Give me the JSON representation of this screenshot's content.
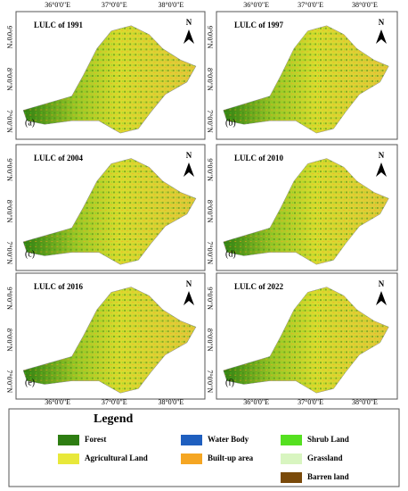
{
  "panels": [
    {
      "title": "LULC of 1991",
      "letter": "(a)"
    },
    {
      "title": "LULC of 1997",
      "letter": "(b)"
    },
    {
      "title": "LULC of 2004",
      "letter": "(c)"
    },
    {
      "title": "LULC of 2010",
      "letter": "(d)"
    },
    {
      "title": "LULC of 2016",
      "letter": "(e)"
    },
    {
      "title": "LULC of 2022",
      "letter": "(f)"
    }
  ],
  "lon_labels": [
    "36°0'0\"E",
    "37°0'0\"E",
    "38°0'0\"E"
  ],
  "lat_labels": [
    "9°0'0\"N",
    "8°0'0\"N",
    "7°0'0\"N"
  ],
  "north": "N",
  "legend": {
    "title": "Legend",
    "items": [
      {
        "name": "Forest",
        "color": "#2e7d12"
      },
      {
        "name": "Agricultural Land",
        "color": "#e8e83a"
      },
      {
        "name": "Water Body",
        "color": "#1f5fbf"
      },
      {
        "name": "Built-up area",
        "color": "#f5a623"
      },
      {
        "name": "Shrub Land",
        "color": "#55e020"
      },
      {
        "name": "Grassland",
        "color": "#d8f5c0"
      },
      {
        "name": "Barren land",
        "color": "#7a4a0a"
      }
    ]
  }
}
